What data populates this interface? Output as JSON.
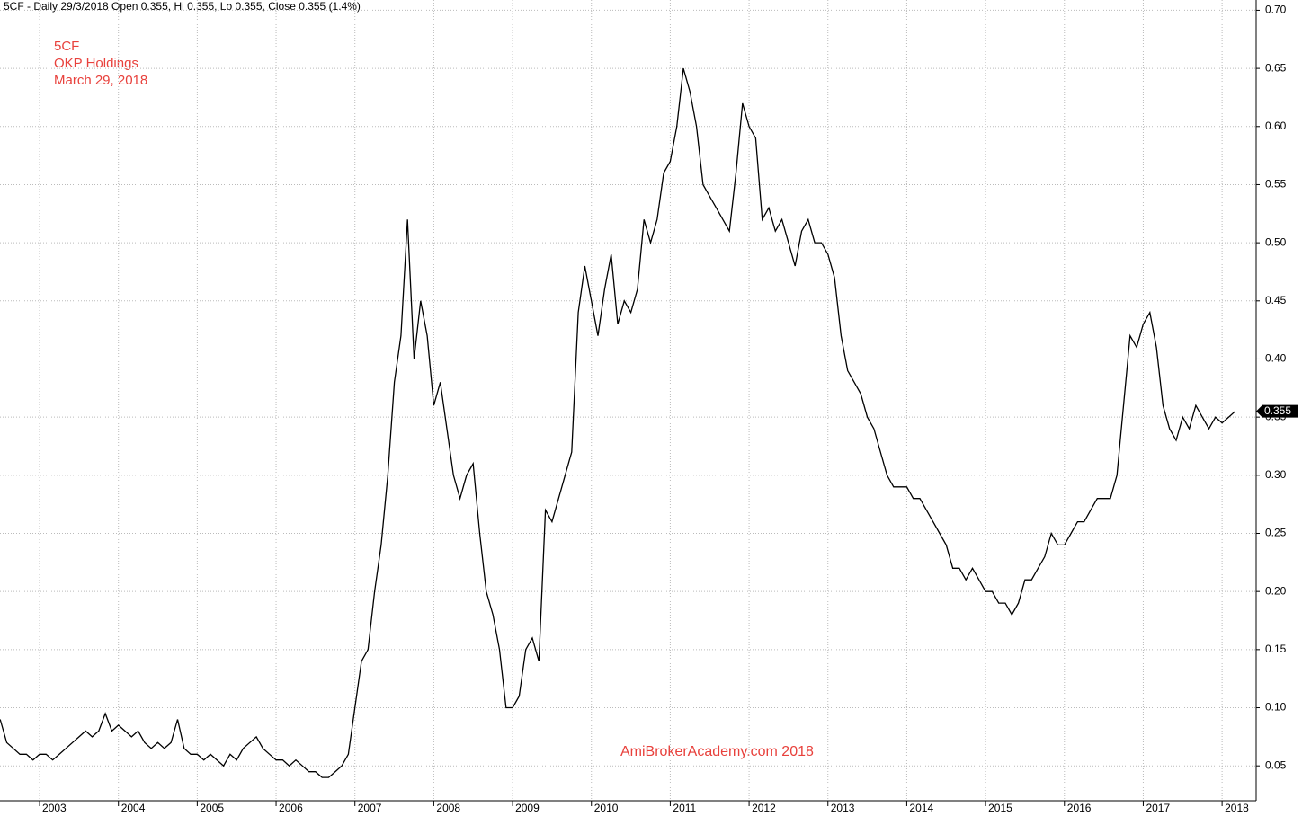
{
  "chart_data": {
    "type": "line",
    "title": "5CF - Daily 29/3/2018 Open 0.355, Hi 0.355, Lo 0.355, Close 0.355 (1.4%)",
    "annotations": [
      "5CF",
      "OKP Holdings",
      "March 29, 2018"
    ],
    "watermark": "AmiBrokerAcademy.com  2018",
    "categories": [
      null,
      null,
      null,
      null,
      null,
      null,
      "2003",
      null,
      null,
      null,
      null,
      null,
      null,
      null,
      null,
      null,
      null,
      null,
      "2004",
      null,
      null,
      null,
      null,
      null,
      null,
      null,
      null,
      null,
      null,
      null,
      "2005",
      null,
      null,
      null,
      null,
      null,
      null,
      null,
      null,
      null,
      null,
      null,
      "2006",
      null,
      null,
      null,
      null,
      null,
      null,
      null,
      null,
      null,
      null,
      null,
      "2007",
      null,
      null,
      null,
      null,
      null,
      null,
      null,
      null,
      null,
      null,
      null,
      "2008",
      null,
      null,
      null,
      null,
      null,
      null,
      null,
      null,
      null,
      null,
      null,
      "2009",
      null,
      null,
      null,
      null,
      null,
      null,
      null,
      null,
      null,
      null,
      null,
      "2010",
      null,
      null,
      null,
      null,
      null,
      null,
      null,
      null,
      null,
      null,
      null,
      "2011",
      null,
      null,
      null,
      null,
      null,
      null,
      null,
      null,
      null,
      null,
      null,
      "2012",
      null,
      null,
      null,
      null,
      null,
      null,
      null,
      null,
      null,
      null,
      null,
      "2013",
      null,
      null,
      null,
      null,
      null,
      null,
      null,
      null,
      null,
      null,
      null,
      "2014",
      null,
      null,
      null,
      null,
      null,
      null,
      null,
      null,
      null,
      null,
      null,
      "2015",
      null,
      null,
      null,
      null,
      null,
      null,
      null,
      null,
      null,
      null,
      null,
      "2016",
      null,
      null,
      null,
      null,
      null,
      null,
      null,
      null,
      null,
      null,
      null,
      "2017",
      null,
      null,
      null,
      null,
      null,
      null,
      null,
      null,
      null,
      null,
      null,
      "2018",
      null,
      null
    ],
    "values": [
      0.09,
      0.07,
      0.065,
      0.06,
      0.06,
      0.055,
      0.06,
      0.06,
      0.055,
      0.06,
      0.065,
      0.07,
      0.075,
      0.08,
      0.075,
      0.08,
      0.095,
      0.08,
      0.085,
      0.08,
      0.075,
      0.08,
      0.07,
      0.065,
      0.07,
      0.065,
      0.07,
      0.09,
      0.065,
      0.06,
      0.06,
      0.055,
      0.06,
      0.055,
      0.05,
      0.06,
      0.055,
      0.065,
      0.07,
      0.075,
      0.065,
      0.06,
      0.055,
      0.055,
      0.05,
      0.055,
      0.05,
      0.045,
      0.045,
      0.04,
      0.04,
      0.045,
      0.05,
      0.06,
      0.1,
      0.14,
      0.15,
      0.2,
      0.24,
      0.3,
      0.38,
      0.42,
      0.52,
      0.4,
      0.45,
      0.42,
      0.36,
      0.38,
      0.34,
      0.3,
      0.28,
      0.3,
      0.31,
      0.25,
      0.2,
      0.18,
      0.15,
      0.1,
      0.1,
      0.11,
      0.15,
      0.16,
      0.14,
      0.27,
      0.26,
      0.28,
      0.3,
      0.32,
      0.44,
      0.48,
      0.45,
      0.42,
      0.46,
      0.49,
      0.43,
      0.45,
      0.44,
      0.46,
      0.52,
      0.5,
      0.52,
      0.56,
      0.57,
      0.6,
      0.65,
      0.63,
      0.6,
      0.55,
      0.54,
      0.53,
      0.52,
      0.51,
      0.56,
      0.62,
      0.6,
      0.59,
      0.52,
      0.53,
      0.51,
      0.52,
      0.5,
      0.48,
      0.51,
      0.52,
      0.5,
      0.5,
      0.49,
      0.47,
      0.42,
      0.39,
      0.38,
      0.37,
      0.35,
      0.34,
      0.32,
      0.3,
      0.29,
      0.29,
      0.29,
      0.28,
      0.28,
      0.27,
      0.26,
      0.25,
      0.24,
      0.22,
      0.22,
      0.21,
      0.22,
      0.21,
      0.2,
      0.2,
      0.19,
      0.19,
      0.18,
      0.19,
      0.21,
      0.21,
      0.22,
      0.23,
      0.25,
      0.24,
      0.24,
      0.25,
      0.26,
      0.26,
      0.27,
      0.28,
      0.28,
      0.28,
      0.3,
      0.36,
      0.42,
      0.41,
      0.43,
      0.44,
      0.41,
      0.36,
      0.34,
      0.33,
      0.35,
      0.34,
      0.36,
      0.35,
      0.34,
      0.35,
      0.345,
      0.35,
      0.355
    ],
    "color": "#000000",
    "ylim": [
      0.02,
      0.71
    ],
    "yticks": [
      0.05,
      {
        "value": 0.1,
        "label": "0.10"
      },
      0.15,
      {
        "value": 0.2,
        "label": "0.20"
      },
      0.25,
      {
        "value": 0.3,
        "label": "0.30"
      },
      0.35,
      {
        "value": 0.4,
        "label": "0.40"
      },
      0.45,
      {
        "value": 0.5,
        "label": "0.50"
      },
      0.55,
      {
        "value": 0.6,
        "label": "0.60"
      },
      0.65,
      {
        "value": 0.7,
        "label": "0.70"
      }
    ],
    "grid": true
  }
}
